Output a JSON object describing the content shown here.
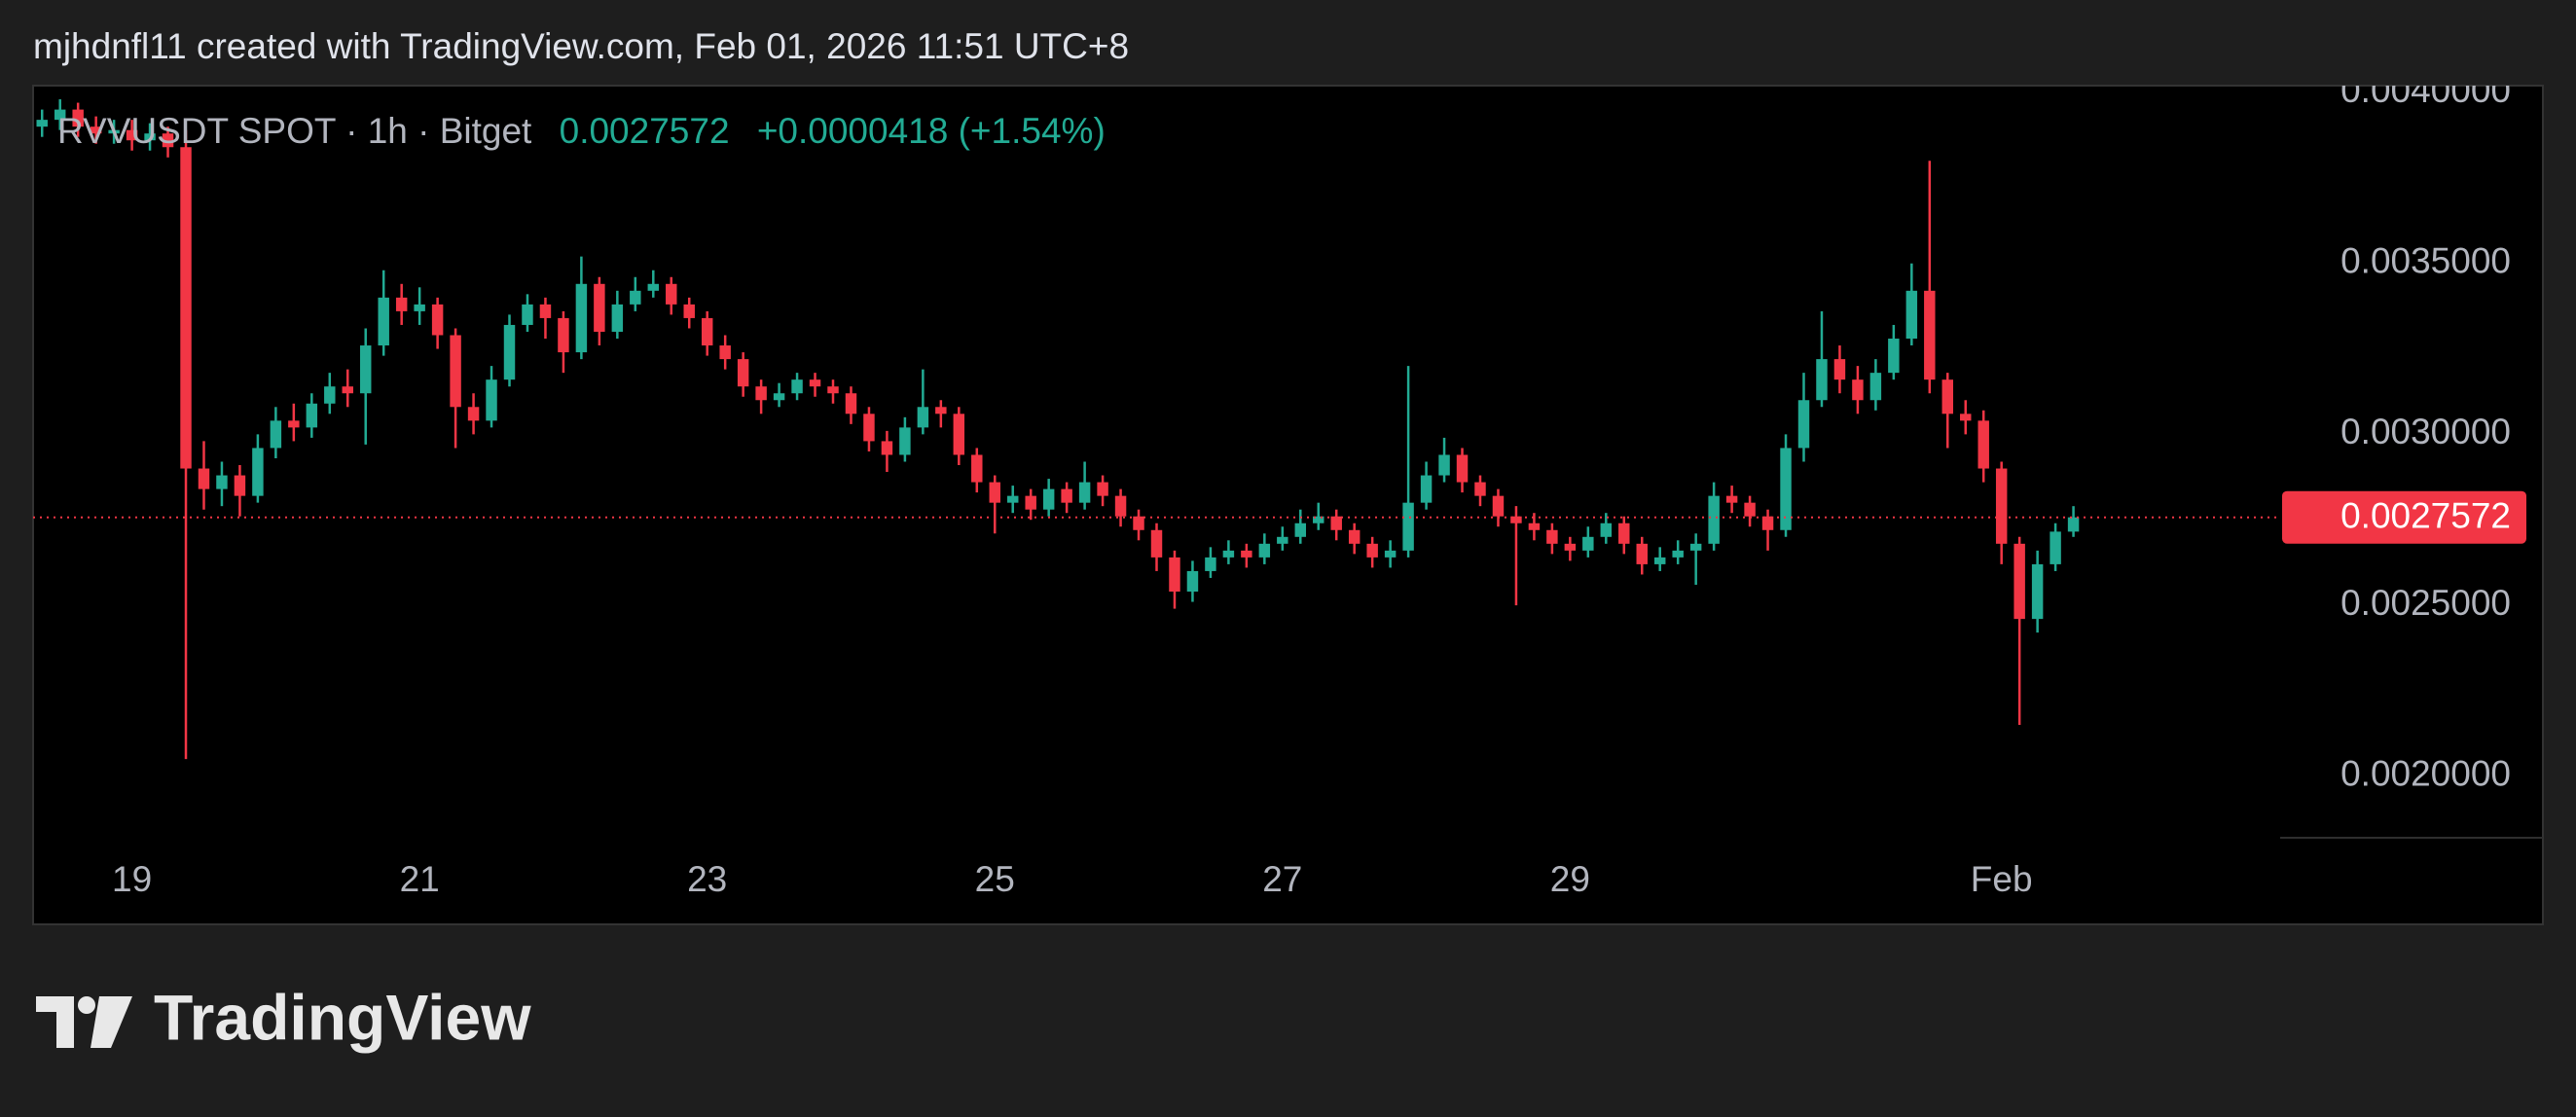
{
  "header": {
    "attribution": "mjhdnfl11 created with TradingView.com, Feb 01, 2026 11:51 UTC+8"
  },
  "branding": "TradingView",
  "chart_data": {
    "type": "candlestick",
    "title": "RVVUSDT SPOT · 1h · Bitget",
    "change_label": "+0.0000418 (+1.54%)",
    "up_color": "#22ab94",
    "down_color": "#f23645",
    "open": [
      0.0039,
      0.00392,
      0.00395,
      0.0039,
      0.00388,
      0.00389,
      0.00386,
      0.00388,
      0.00384,
      0.0029,
      0.00284,
      0.00288,
      0.00282,
      0.00296,
      0.00304,
      0.00302,
      0.00309,
      0.00314,
      0.00312,
      0.00326,
      0.0034,
      0.00336,
      0.00338,
      0.00329,
      0.00308,
      0.00304,
      0.00316,
      0.00332,
      0.00338,
      0.00334,
      0.00324,
      0.00344,
      0.0033,
      0.00338,
      0.00342,
      0.00344,
      0.00338,
      0.00334,
      0.00326,
      0.00322,
      0.00314,
      0.0031,
      0.00312,
      0.00316,
      0.00314,
      0.00312,
      0.00306,
      0.00298,
      0.00294,
      0.00302,
      0.00308,
      0.00306,
      0.00294,
      0.00286,
      0.0028,
      0.00282,
      0.00278,
      0.00284,
      0.0028,
      0.00286,
      0.00282,
      0.00276,
      0.00272,
      0.00264,
      0.00254,
      0.0026,
      0.00264,
      0.00266,
      0.00264,
      0.00268,
      0.0027,
      0.00274,
      0.00276,
      0.00272,
      0.00268,
      0.00264,
      0.00266,
      0.0028,
      0.00288,
      0.00294,
      0.00286,
      0.00282,
      0.00276,
      0.00274,
      0.00272,
      0.00268,
      0.00266,
      0.0027,
      0.00274,
      0.00268,
      0.00262,
      0.00264,
      0.00266,
      0.00268,
      0.00282,
      0.0028,
      0.00276,
      0.00272,
      0.00296,
      0.0031,
      0.00322,
      0.00316,
      0.0031,
      0.00318,
      0.00328,
      0.00342,
      0.00316,
      0.00306,
      0.00304,
      0.0029,
      0.00268,
      0.00246,
      0.00262,
      0.0027154
    ],
    "high": [
      0.00395,
      0.00398,
      0.00397,
      0.00393,
      0.00392,
      0.00392,
      0.00391,
      0.0039,
      0.00389,
      0.00298,
      0.00292,
      0.00291,
      0.003,
      0.00308,
      0.00309,
      0.00312,
      0.00318,
      0.00319,
      0.00331,
      0.00348,
      0.00344,
      0.00343,
      0.0034,
      0.00331,
      0.00312,
      0.0032,
      0.00335,
      0.00341,
      0.0034,
      0.00336,
      0.00352,
      0.00346,
      0.00342,
      0.00346,
      0.00348,
      0.00346,
      0.0034,
      0.00336,
      0.00329,
      0.00324,
      0.00316,
      0.00315,
      0.00318,
      0.00318,
      0.00316,
      0.00314,
      0.00308,
      0.00301,
      0.00305,
      0.00319,
      0.0031,
      0.00308,
      0.00296,
      0.00288,
      0.00285,
      0.00284,
      0.00287,
      0.00286,
      0.00292,
      0.00288,
      0.00284,
      0.00278,
      0.00274,
      0.00266,
      0.00263,
      0.00267,
      0.00269,
      0.00268,
      0.00271,
      0.00273,
      0.00278,
      0.0028,
      0.00278,
      0.00274,
      0.0027,
      0.00269,
      0.0032,
      0.00292,
      0.00299,
      0.00296,
      0.00288,
      0.00284,
      0.00279,
      0.00277,
      0.00274,
      0.0027,
      0.00273,
      0.00277,
      0.00276,
      0.0027,
      0.00267,
      0.00269,
      0.00271,
      0.00286,
      0.00285,
      0.00282,
      0.00278,
      0.003,
      0.00318,
      0.00336,
      0.00326,
      0.0032,
      0.00322,
      0.00332,
      0.0035,
      0.0038,
      0.00318,
      0.0031,
      0.00307,
      0.00292,
      0.0027,
      0.00266,
      0.00274,
      0.00279
    ],
    "low": [
      0.00387,
      0.00389,
      0.00387,
      0.00385,
      0.00385,
      0.00383,
      0.00383,
      0.00381,
      0.00205,
      0.00278,
      0.00279,
      0.00276,
      0.0028,
      0.00293,
      0.00298,
      0.00299,
      0.00306,
      0.00308,
      0.00297,
      0.00323,
      0.00332,
      0.00332,
      0.00325,
      0.00296,
      0.003,
      0.00302,
      0.00314,
      0.0033,
      0.00328,
      0.00318,
      0.00322,
      0.00326,
      0.00328,
      0.00336,
      0.0034,
      0.00335,
      0.00331,
      0.00323,
      0.00319,
      0.00311,
      0.00306,
      0.00308,
      0.0031,
      0.00311,
      0.00309,
      0.00303,
      0.00295,
      0.00289,
      0.00292,
      0.003,
      0.00302,
      0.00291,
      0.00283,
      0.00271,
      0.00277,
      0.00275,
      0.00276,
      0.00277,
      0.00278,
      0.00279,
      0.00273,
      0.00269,
      0.0026,
      0.00249,
      0.00251,
      0.00258,
      0.00262,
      0.00261,
      0.00262,
      0.00266,
      0.00268,
      0.00272,
      0.00269,
      0.00265,
      0.00261,
      0.00261,
      0.00264,
      0.00278,
      0.00286,
      0.00283,
      0.00279,
      0.00273,
      0.0025,
      0.00269,
      0.00265,
      0.00263,
      0.00264,
      0.00268,
      0.00265,
      0.00259,
      0.0026,
      0.00262,
      0.00256,
      0.00266,
      0.00277,
      0.00273,
      0.00266,
      0.0027,
      0.00292,
      0.00308,
      0.00312,
      0.00306,
      0.00307,
      0.00316,
      0.00326,
      0.00312,
      0.00296,
      0.003,
      0.00286,
      0.00262,
      0.00215,
      0.00242,
      0.0026,
      0.0027
    ],
    "close": [
      0.00392,
      0.00395,
      0.0039,
      0.00388,
      0.00389,
      0.00386,
      0.00388,
      0.00384,
      0.0029,
      0.00284,
      0.00288,
      0.00282,
      0.00296,
      0.00304,
      0.00302,
      0.00309,
      0.00314,
      0.00312,
      0.00326,
      0.0034,
      0.00336,
      0.00338,
      0.00329,
      0.00308,
      0.00304,
      0.00316,
      0.00332,
      0.00338,
      0.00334,
      0.00324,
      0.00344,
      0.0033,
      0.00338,
      0.00342,
      0.00344,
      0.00338,
      0.00334,
      0.00326,
      0.00322,
      0.00314,
      0.0031,
      0.00312,
      0.00316,
      0.00314,
      0.00312,
      0.00306,
      0.00298,
      0.00294,
      0.00302,
      0.00308,
      0.00306,
      0.00294,
      0.00286,
      0.0028,
      0.00282,
      0.00278,
      0.00284,
      0.0028,
      0.00286,
      0.00282,
      0.00276,
      0.00272,
      0.00264,
      0.00254,
      0.0026,
      0.00264,
      0.00266,
      0.00264,
      0.00268,
      0.0027,
      0.00274,
      0.00276,
      0.00272,
      0.00268,
      0.00264,
      0.00266,
      0.0028,
      0.00288,
      0.00294,
      0.00286,
      0.00282,
      0.00276,
      0.00274,
      0.00272,
      0.00268,
      0.00266,
      0.0027,
      0.00274,
      0.00268,
      0.00262,
      0.00264,
      0.00266,
      0.00268,
      0.00282,
      0.0028,
      0.00276,
      0.00272,
      0.00296,
      0.0031,
      0.00322,
      0.00316,
      0.0031,
      0.00318,
      0.00328,
      0.00342,
      0.00316,
      0.00306,
      0.00304,
      0.0029,
      0.00268,
      0.00246,
      0.00262,
      0.0027154,
      0.0027572
    ],
    "xlim": [
      0,
      125
    ],
    "xticks": [
      {
        "value": 5.5,
        "label": "19"
      },
      {
        "value": 21.5,
        "label": "21"
      },
      {
        "value": 37.5,
        "label": "23"
      },
      {
        "value": 53.5,
        "label": "25"
      },
      {
        "value": 69.5,
        "label": "27"
      },
      {
        "value": 85.5,
        "label": "29"
      },
      {
        "value": 109.5,
        "label": "Feb"
      }
    ],
    "ylim": [
      0.00182,
      0.00402
    ],
    "yticks": [
      {
        "value": 0.002,
        "label": "0.0020000"
      },
      {
        "value": 0.0025,
        "label": "0.0025000"
      },
      {
        "value": 0.003,
        "label": "0.0030000"
      },
      {
        "value": 0.0035,
        "label": "0.0035000"
      },
      {
        "value": 0.004,
        "label": "0.0040000"
      }
    ]
  }
}
